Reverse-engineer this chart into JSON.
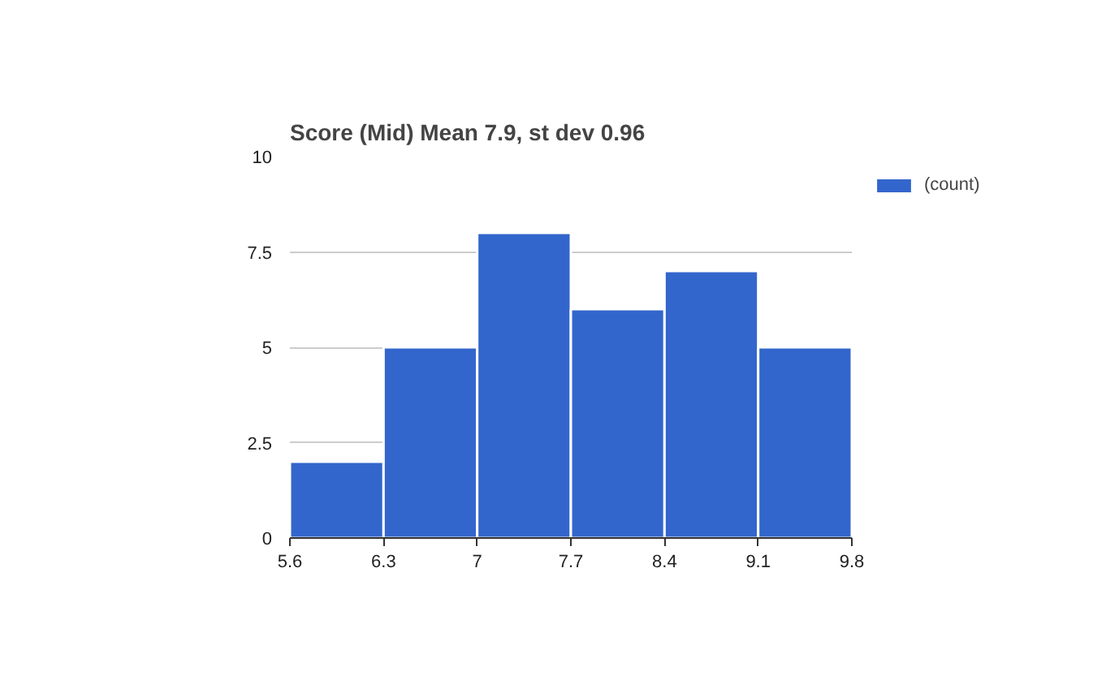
{
  "chart_data": {
    "type": "histogram",
    "title": "Score (Mid) Mean 7.9, st dev 0.96",
    "bins": [
      5.6,
      6.3,
      7,
      7.7,
      8.4,
      9.1,
      9.8
    ],
    "series": [
      {
        "name": "(count)",
        "color": "#3366cc",
        "values": [
          2,
          5,
          8,
          6,
          7,
          5
        ]
      }
    ],
    "xlim": [
      5.6,
      9.8
    ],
    "xticks": [
      5.6,
      6.3,
      7,
      7.7,
      8.4,
      9.1,
      9.8
    ],
    "ylim": [
      0,
      10
    ],
    "yticks": [
      0,
      2.5,
      5,
      7.5,
      10
    ],
    "grid": "y",
    "legend": "top right"
  }
}
